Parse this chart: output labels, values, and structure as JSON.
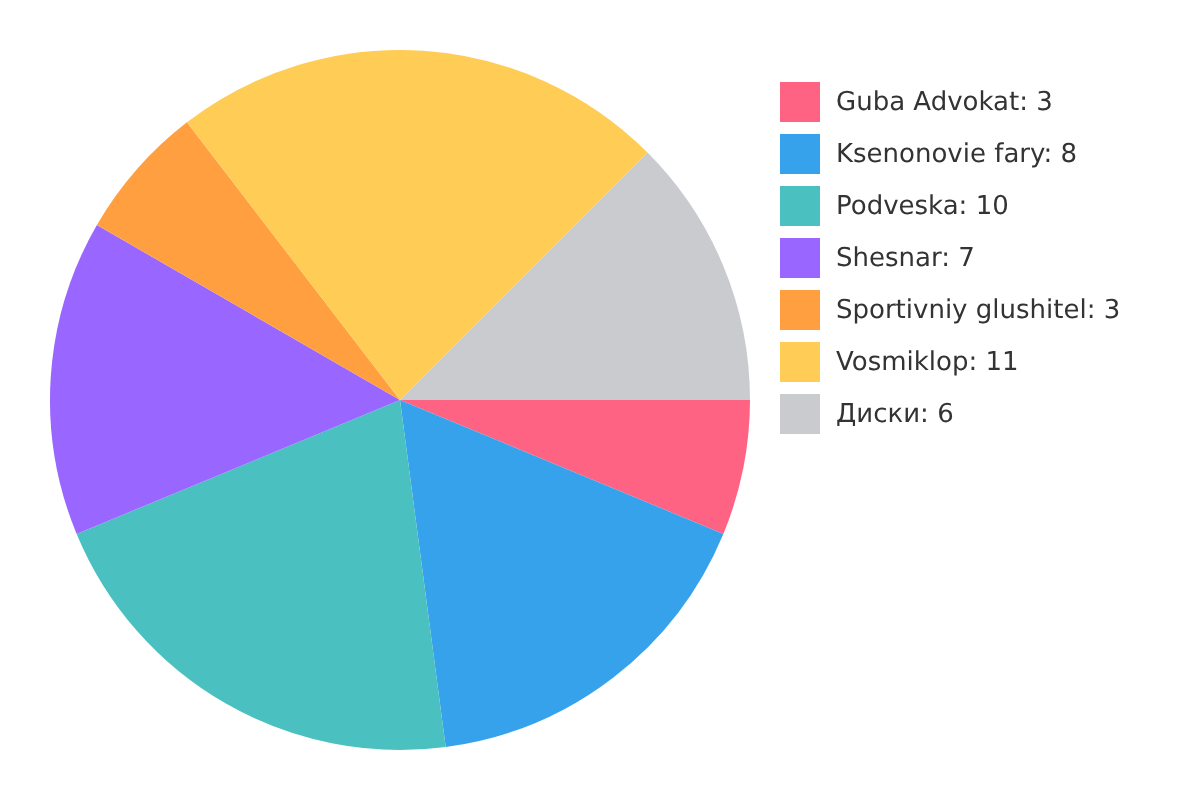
{
  "chart_data": {
    "type": "pie",
    "categories": [
      "Guba Advokat: 3",
      "Ksenonovie fary: 8",
      "Podveska: 10",
      "Shesnar: 7",
      "Sportivniy glushitel: 3",
      "Vosmiklop: 11",
      "Диски: 6"
    ],
    "values": [
      3,
      8,
      10,
      7,
      3,
      11,
      6
    ],
    "colors": [
      "#ff6384",
      "#36a2eb",
      "#4bc0c0",
      "#9966ff",
      "#ff9f40",
      "#ffcd56",
      "#c9cbcf"
    ],
    "legend": "right"
  }
}
